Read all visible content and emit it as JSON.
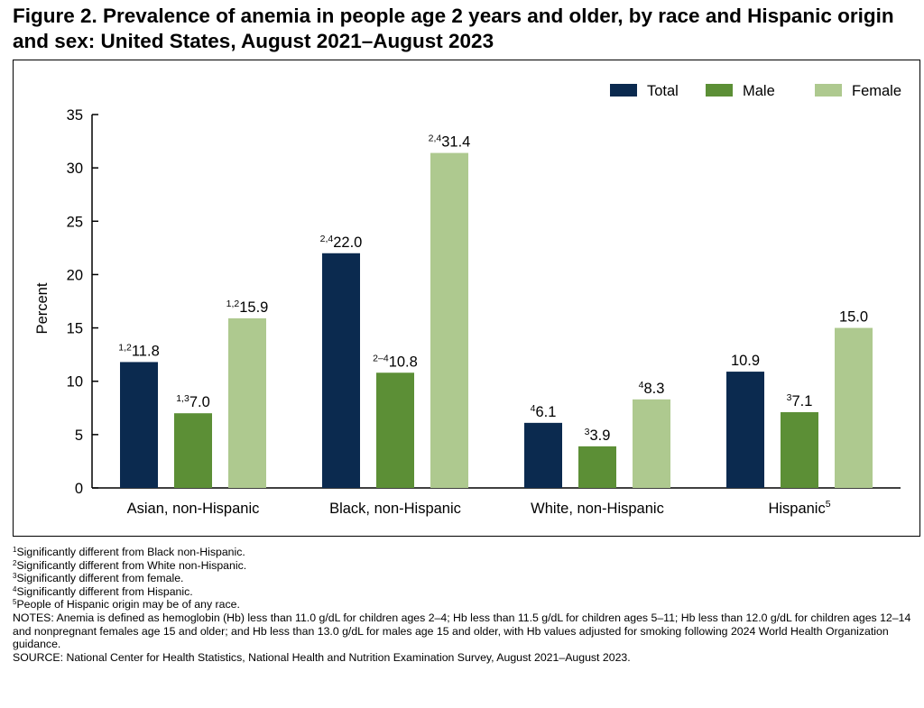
{
  "title": "Figure 2. Prevalence of anemia in people age 2 years and older, by race and Hispanic origin and sex: United States, August 2021–August 2023",
  "chart_data": {
    "type": "bar",
    "categories": [
      "Asian, non-Hispanic",
      "Black, non-Hispanic",
      "White, non-Hispanic",
      "Hispanic"
    ],
    "category_superscripts": [
      "",
      "",
      "",
      "5"
    ],
    "ylabel": "Percent",
    "xlabel": "",
    "ylim": [
      0,
      35
    ],
    "yticks": [
      0,
      5,
      10,
      15,
      20,
      25,
      30,
      35
    ],
    "grid": false,
    "legend_position": "top-right",
    "series": [
      {
        "name": "Total",
        "color": "#0b2a4f",
        "values": [
          11.8,
          22.0,
          6.1,
          10.9
        ],
        "labels": [
          "11.8",
          "22.0",
          "6.1",
          "10.9"
        ],
        "superscripts": [
          "1,2",
          "2,4",
          "4",
          ""
        ]
      },
      {
        "name": "Male",
        "color": "#5c8f36",
        "values": [
          7.0,
          10.8,
          3.9,
          7.1
        ],
        "labels": [
          "7.0",
          "10.8",
          "3.9",
          "7.1"
        ],
        "superscripts": [
          "1,3",
          "2–4",
          "3",
          "3"
        ]
      },
      {
        "name": "Female",
        "color": "#aec98f",
        "values": [
          15.9,
          31.4,
          8.3,
          15.0
        ],
        "labels": [
          "15.9",
          "31.4",
          "8.3",
          "15.0"
        ],
        "superscripts": [
          "1,2",
          "2,4",
          "4",
          ""
        ]
      }
    ]
  },
  "footnotes": [
    {
      "sup": "1",
      "text": "Significantly different from Black non-Hispanic."
    },
    {
      "sup": "2",
      "text": "Significantly different from White non-Hispanic."
    },
    {
      "sup": "3",
      "text": "Significantly different from female."
    },
    {
      "sup": "4",
      "text": "Significantly different from Hispanic."
    },
    {
      "sup": "5",
      "text": "People of Hispanic origin may be of any race."
    }
  ],
  "notes": "NOTES: Anemia is defined as hemoglobin (Hb) less than 11.0 g/dL for children ages 2–4; Hb less than 11.5 g/dL for children ages 5–11; Hb less than 12.0 g/dL for children ages 12–14 and nonpregnant females age 15 and older; and Hb less than 13.0 g/dL for males age 15 and older, with Hb values adjusted for smoking following 2024 World Health Organization guidance.",
  "source": "SOURCE: National Center for Health Statistics, National Health and Nutrition Examination Survey, August 2021–August 2023."
}
